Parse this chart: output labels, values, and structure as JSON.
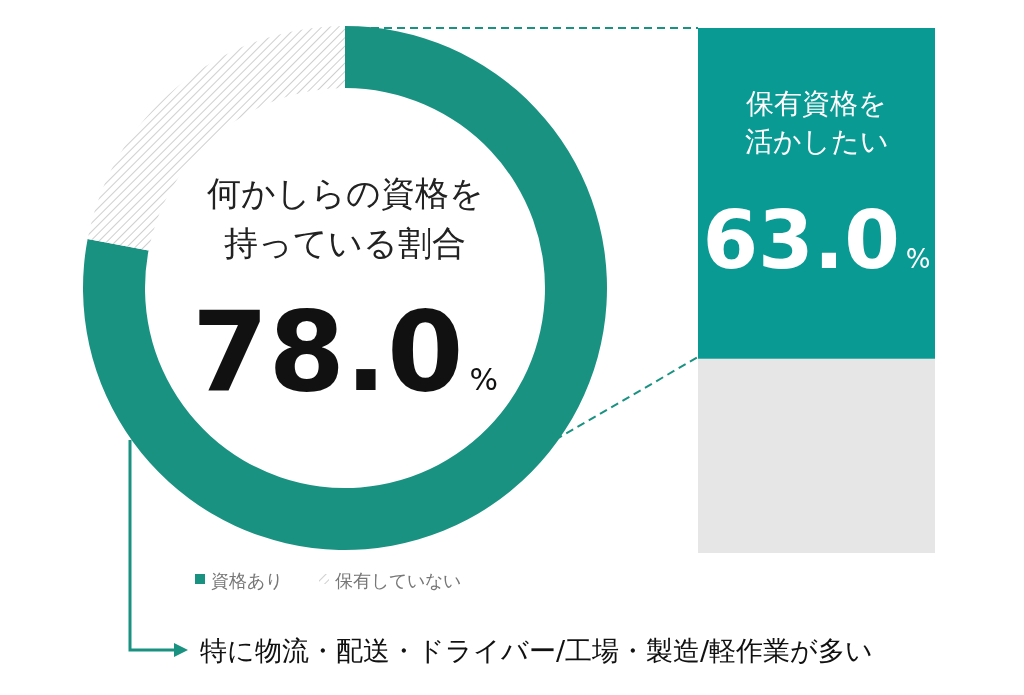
{
  "chart_data": [
    {
      "type": "donut",
      "title": "何かしらの資格を持っている割合",
      "categories": [
        "資格あり",
        "保有していない"
      ],
      "values": [
        78,
        22
      ],
      "colors": [
        "#1a9282",
        "#d9d9d9"
      ],
      "value_labels": [
        "78.0%",
        null
      ],
      "legend": "bottom",
      "annotations": [
        "特に物流・配送・ドライバー/工場・製造/軽作業が多い"
      ]
    },
    {
      "type": "bar",
      "stacked": true,
      "title": "保有資格を活かしたい",
      "categories": [
        null
      ],
      "series": [
        {
          "color": "#e6e6e6",
          "values": [
            37
          ]
        },
        {
          "color": "#0a9a94",
          "values": [
            63
          ],
          "value_labels": [
            "63.0%"
          ]
        }
      ]
    }
  ]
}
